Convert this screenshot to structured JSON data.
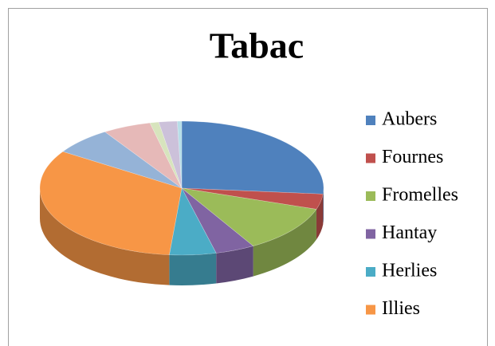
{
  "chart_data": {
    "type": "pie",
    "title": "Tabac",
    "categories": [
      "Aubers",
      "Fournes",
      "Fromelles",
      "Hantay",
      "Herlies",
      "Illies",
      null,
      null,
      null,
      null,
      null
    ],
    "values": [
      26.4,
      3.7,
      11.5,
      4.5,
      5.3,
      32.8,
      6.7,
      5.5,
      1.0,
      2.1,
      0.5
    ],
    "colors": [
      "#4f81bd",
      "#c0504d",
      "#9bbb59",
      "#8064a2",
      "#4bacc6",
      "#f79646",
      "#95b3d7",
      "#e6b9b8",
      "#d7e4bd",
      "#ccc1da",
      "#b7dee8"
    ],
    "legend": "right"
  }
}
